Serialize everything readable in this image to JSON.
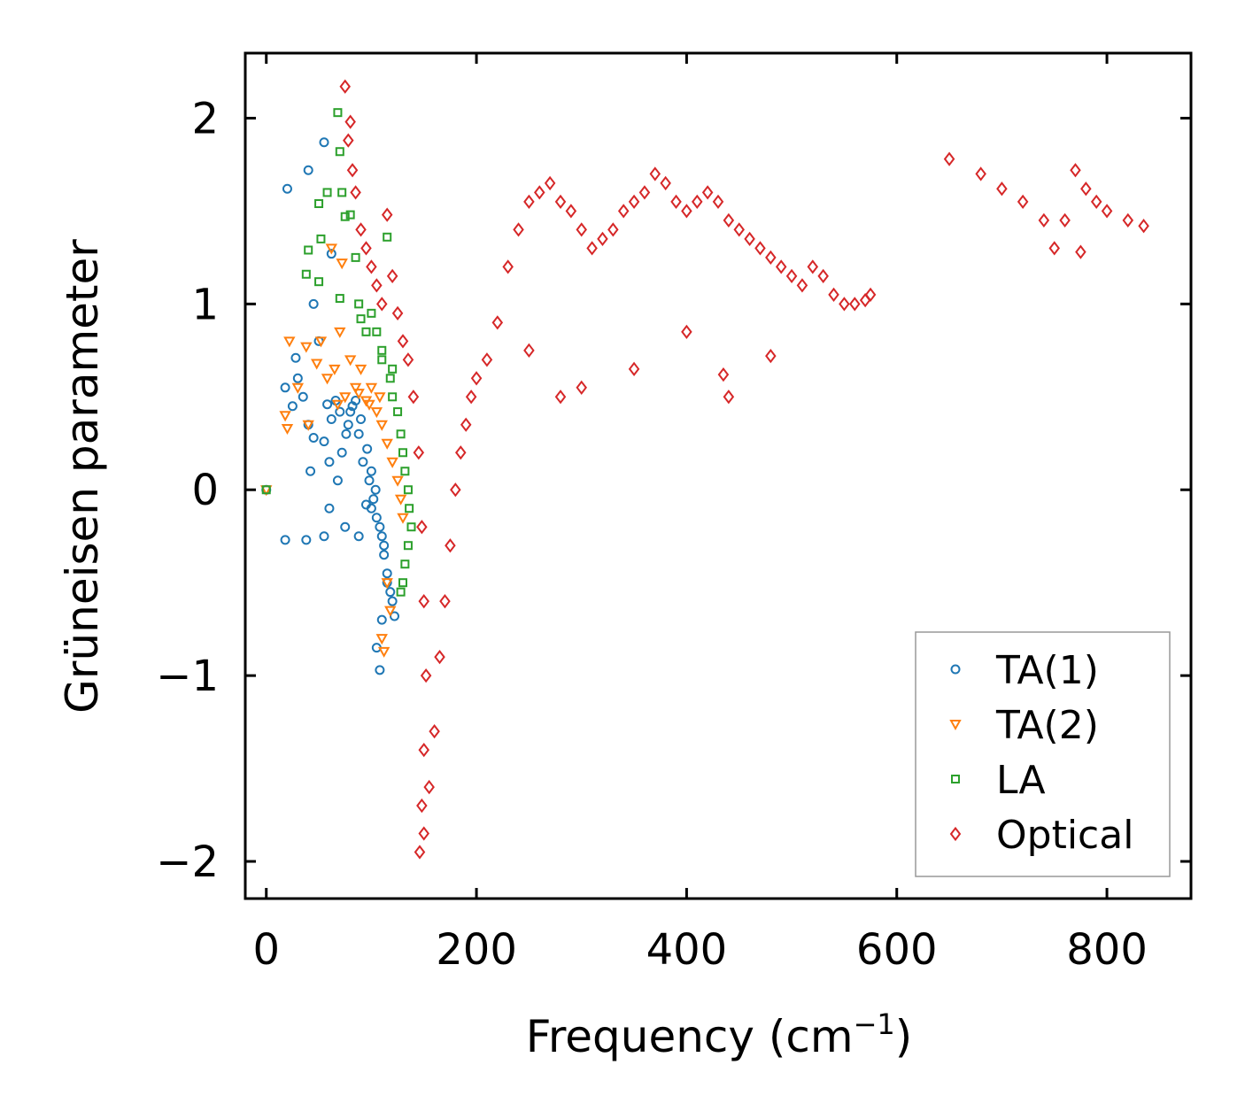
{
  "chart_data": {
    "type": "scatter",
    "title": "",
    "xlabel": "Frequency (cm",
    "xlabel_sup": "−1",
    "xlabel_close": ")",
    "ylabel": "Grüneisen parameter",
    "xlim": [
      -20,
      880
    ],
    "ylim": [
      -2.2,
      2.35
    ],
    "xticks": [
      0,
      200,
      400,
      600,
      800
    ],
    "xtick_labels": [
      "0",
      "200",
      "400",
      "600",
      "800"
    ],
    "yticks": [
      2,
      1,
      0,
      -1,
      -2
    ],
    "ytick_labels": [
      "2",
      "1",
      "0",
      "−1",
      "−2"
    ],
    "grid": false,
    "legend_position": "lower-right",
    "series": [
      {
        "name": "TA(1)",
        "marker": "circle",
        "color": "#1f77b4",
        "points": [
          [
            0,
            0
          ],
          [
            18,
            -0.27
          ],
          [
            38,
            -0.27
          ],
          [
            55,
            -0.25
          ],
          [
            60,
            -0.1
          ],
          [
            75,
            -0.2
          ],
          [
            88,
            -0.25
          ],
          [
            95,
            -0.08
          ],
          [
            100,
            -0.1
          ],
          [
            108,
            -0.97
          ],
          [
            105,
            -0.85
          ],
          [
            110,
            -0.7
          ],
          [
            20,
            1.62
          ],
          [
            40,
            1.72
          ],
          [
            55,
            1.87
          ],
          [
            62,
            1.27
          ],
          [
            45,
            1.0
          ],
          [
            50,
            0.8
          ],
          [
            28,
            0.71
          ],
          [
            30,
            0.6
          ],
          [
            18,
            0.55
          ],
          [
            25,
            0.45
          ],
          [
            35,
            0.5
          ],
          [
            40,
            0.35
          ],
          [
            45,
            0.28
          ],
          [
            42,
            0.1
          ],
          [
            55,
            0.26
          ],
          [
            60,
            0.15
          ],
          [
            68,
            0.05
          ],
          [
            72,
            0.2
          ],
          [
            78,
            0.35
          ],
          [
            82,
            0.45
          ],
          [
            88,
            0.3
          ],
          [
            92,
            0.15
          ],
          [
            98,
            0.05
          ],
          [
            102,
            -0.05
          ],
          [
            105,
            -0.15
          ],
          [
            110,
            -0.25
          ],
          [
            112,
            -0.35
          ],
          [
            115,
            -0.45
          ],
          [
            118,
            -0.55
          ],
          [
            120,
            -0.6
          ],
          [
            122,
            -0.68
          ],
          [
            115,
            -0.5
          ],
          [
            112,
            -0.3
          ],
          [
            108,
            -0.2
          ],
          [
            104,
            0.0
          ],
          [
            100,
            0.1
          ],
          [
            96,
            0.22
          ],
          [
            90,
            0.38
          ],
          [
            85,
            0.48
          ],
          [
            80,
            0.42
          ],
          [
            76,
            0.3
          ],
          [
            70,
            0.42
          ],
          [
            66,
            0.48
          ],
          [
            62,
            0.38
          ],
          [
            58,
            0.46
          ]
        ]
      },
      {
        "name": "TA(2)",
        "marker": "triangle-down",
        "color": "#ff7f0e",
        "points": [
          [
            0,
            0
          ],
          [
            20,
            0.33
          ],
          [
            18,
            0.4
          ],
          [
            22,
            0.8
          ],
          [
            30,
            0.55
          ],
          [
            38,
            0.77
          ],
          [
            40,
            0.35
          ],
          [
            48,
            0.68
          ],
          [
            52,
            0.8
          ],
          [
            58,
            0.6
          ],
          [
            65,
            0.65
          ],
          [
            70,
            0.85
          ],
          [
            62,
            1.3
          ],
          [
            72,
            1.22
          ],
          [
            80,
            0.7
          ],
          [
            85,
            0.55
          ],
          [
            90,
            0.65
          ],
          [
            95,
            0.48
          ],
          [
            100,
            0.55
          ],
          [
            105,
            0.42
          ],
          [
            110,
            0.35
          ],
          [
            115,
            0.25
          ],
          [
            120,
            0.15
          ],
          [
            125,
            0.05
          ],
          [
            128,
            -0.05
          ],
          [
            130,
            -0.15
          ],
          [
            115,
            -0.5
          ],
          [
            118,
            -0.65
          ],
          [
            110,
            -0.8
          ],
          [
            112,
            -0.87
          ],
          [
            108,
            0.5
          ],
          [
            98,
            0.46
          ],
          [
            88,
            0.52
          ],
          [
            75,
            0.5
          ],
          [
            68,
            0.46
          ]
        ]
      },
      {
        "name": "LA",
        "marker": "square",
        "color": "#2ca02c",
        "points": [
          [
            0,
            0
          ],
          [
            68,
            2.03
          ],
          [
            70,
            1.82
          ],
          [
            72,
            1.6
          ],
          [
            75,
            1.47
          ],
          [
            80,
            1.48
          ],
          [
            58,
            1.6
          ],
          [
            50,
            1.54
          ],
          [
            52,
            1.35
          ],
          [
            40,
            1.29
          ],
          [
            38,
            1.16
          ],
          [
            50,
            1.12
          ],
          [
            70,
            1.03
          ],
          [
            85,
            1.25
          ],
          [
            88,
            1.0
          ],
          [
            90,
            0.92
          ],
          [
            95,
            0.85
          ],
          [
            100,
            0.95
          ],
          [
            105,
            0.85
          ],
          [
            110,
            0.75
          ],
          [
            115,
            1.36
          ],
          [
            118,
            0.6
          ],
          [
            120,
            0.5
          ],
          [
            125,
            0.42
          ],
          [
            128,
            0.3
          ],
          [
            130,
            0.2
          ],
          [
            132,
            0.1
          ],
          [
            135,
            0.0
          ],
          [
            136,
            -0.1
          ],
          [
            138,
            -0.2
          ],
          [
            135,
            -0.3
          ],
          [
            132,
            -0.4
          ],
          [
            130,
            -0.5
          ],
          [
            128,
            -0.55
          ],
          [
            110,
            0.7
          ],
          [
            120,
            0.65
          ]
        ]
      },
      {
        "name": "Optical",
        "marker": "diamond",
        "color": "#d62728",
        "points": [
          [
            75,
            2.17
          ],
          [
            80,
            1.98
          ],
          [
            78,
            1.88
          ],
          [
            82,
            1.72
          ],
          [
            85,
            1.6
          ],
          [
            90,
            1.4
          ],
          [
            95,
            1.3
          ],
          [
            100,
            1.2
          ],
          [
            105,
            1.1
          ],
          [
            110,
            1.0
          ],
          [
            115,
            1.48
          ],
          [
            120,
            1.15
          ],
          [
            125,
            0.95
          ],
          [
            130,
            0.8
          ],
          [
            135,
            0.7
          ],
          [
            140,
            0.5
          ],
          [
            145,
            0.2
          ],
          [
            148,
            -0.2
          ],
          [
            150,
            -0.6
          ],
          [
            152,
            -1.0
          ],
          [
            150,
            -1.4
          ],
          [
            148,
            -1.7
          ],
          [
            146,
            -1.95
          ],
          [
            150,
            -1.85
          ],
          [
            155,
            -1.6
          ],
          [
            160,
            -1.3
          ],
          [
            165,
            -0.9
          ],
          [
            170,
            -0.6
          ],
          [
            175,
            -0.3
          ],
          [
            180,
            0.0
          ],
          [
            185,
            0.2
          ],
          [
            190,
            0.35
          ],
          [
            195,
            0.5
          ],
          [
            200,
            0.6
          ],
          [
            210,
            0.7
          ],
          [
            220,
            0.9
          ],
          [
            230,
            1.2
          ],
          [
            240,
            1.4
          ],
          [
            250,
            1.55
          ],
          [
            260,
            1.6
          ],
          [
            270,
            1.65
          ],
          [
            280,
            1.55
          ],
          [
            290,
            1.5
          ],
          [
            300,
            1.4
          ],
          [
            310,
            1.3
          ],
          [
            320,
            1.35
          ],
          [
            330,
            1.4
          ],
          [
            340,
            1.5
          ],
          [
            350,
            1.55
          ],
          [
            360,
            1.6
          ],
          [
            370,
            1.7
          ],
          [
            380,
            1.65
          ],
          [
            390,
            1.55
          ],
          [
            400,
            1.5
          ],
          [
            410,
            1.55
          ],
          [
            420,
            1.6
          ],
          [
            430,
            1.55
          ],
          [
            440,
            1.45
          ],
          [
            450,
            1.4
          ],
          [
            460,
            1.35
          ],
          [
            470,
            1.3
          ],
          [
            480,
            1.25
          ],
          [
            490,
            1.2
          ],
          [
            500,
            1.15
          ],
          [
            510,
            1.1
          ],
          [
            520,
            1.2
          ],
          [
            530,
            1.15
          ],
          [
            540,
            1.05
          ],
          [
            550,
            1.0
          ],
          [
            560,
            1.0
          ],
          [
            570,
            1.02
          ],
          [
            575,
            1.05
          ],
          [
            440,
            0.5
          ],
          [
            435,
            0.62
          ],
          [
            300,
            0.55
          ],
          [
            280,
            0.5
          ],
          [
            250,
            0.75
          ],
          [
            350,
            0.65
          ],
          [
            400,
            0.85
          ],
          [
            480,
            0.72
          ],
          [
            650,
            1.78
          ],
          [
            680,
            1.7
          ],
          [
            700,
            1.62
          ],
          [
            720,
            1.55
          ],
          [
            740,
            1.45
          ],
          [
            750,
            1.3
          ],
          [
            760,
            1.45
          ],
          [
            770,
            1.72
          ],
          [
            780,
            1.62
          ],
          [
            790,
            1.55
          ],
          [
            800,
            1.5
          ],
          [
            820,
            1.45
          ],
          [
            835,
            1.42
          ],
          [
            775,
            1.28
          ]
        ]
      }
    ],
    "legend": [
      "TA(1)",
      "TA(2)",
      "LA",
      "Optical"
    ]
  }
}
